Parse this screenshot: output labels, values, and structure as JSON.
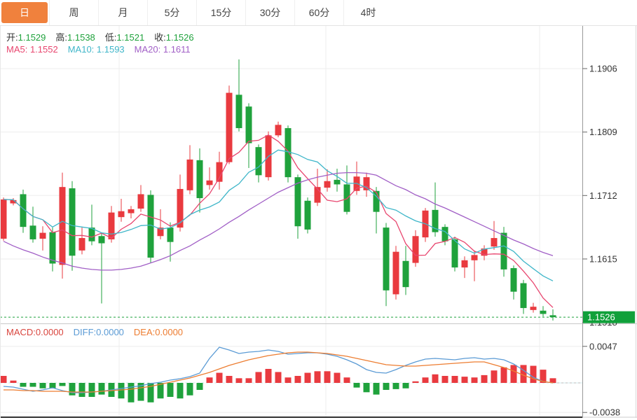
{
  "tabs": [
    {
      "label": "日",
      "active": true
    },
    {
      "label": "周",
      "active": false
    },
    {
      "label": "月",
      "active": false
    },
    {
      "label": "5分",
      "active": false
    },
    {
      "label": "15分",
      "active": false
    },
    {
      "label": "30分",
      "active": false
    },
    {
      "label": "60分",
      "active": false
    },
    {
      "label": "4时",
      "active": false
    }
  ],
  "legend": {
    "open_label": "开:",
    "open_value": "1.1529",
    "high_label": "高:",
    "high_value": "1.1538",
    "low_label": "低:",
    "low_value": "1.1521",
    "close_label": "收:",
    "close_value": "1.1526",
    "ma5_text": "MA5: 1.1552",
    "ma10_text": "MA10: 1.1593",
    "ma20_text": "MA20: 1.1611",
    "macd_text": "MACD:0.0000",
    "diff_text": "DIFF:0.0000",
    "dea_text": "DEA:0.0000"
  },
  "colors": {
    "up": "#e93a3f",
    "down": "#1fa23c",
    "tab_active": "#f0813d",
    "ma5": "#e8466f",
    "ma10": "#3fb6c9",
    "ma20": "#a15fc6",
    "diff": "#5b9bd5",
    "dea": "#ed7d31",
    "badge_bg": "#10a03a",
    "price_line": "#1fa23c",
    "ohlc_value": "#1fa23c",
    "macd_label": "#d9453e",
    "grid": "#ededed",
    "axis_text": "#333333"
  },
  "chart_data": {
    "type": "candlestick",
    "title": "",
    "price_axis_labels": [
      "1.1906",
      "1.1809",
      "1.1712",
      "1.1615",
      "1.1518"
    ],
    "macd_axis_labels": [
      "0.0047",
      "-0.0038"
    ],
    "current_price": "1.1526",
    "candles_ohlc": [
      [
        1.1646,
        1.1709,
        1.1643,
        1.1706
      ],
      [
        1.17,
        1.1708,
        1.1697,
        1.1705
      ],
      [
        1.1714,
        1.1721,
        1.1655,
        1.1664
      ],
      [
        1.1666,
        1.1695,
        1.164,
        1.1645
      ],
      [
        1.1646,
        1.1665,
        1.1628,
        1.1655
      ],
      [
        1.1656,
        1.1663,
        1.1596,
        1.1608
      ],
      [
        1.1606,
        1.1747,
        1.1585,
        1.1725
      ],
      [
        1.1723,
        1.1734,
        1.1597,
        1.162
      ],
      [
        1.1628,
        1.1663,
        1.1622,
        1.1647
      ],
      [
        1.1663,
        1.1698,
        1.1636,
        1.1642
      ],
      [
        1.165,
        1.1654,
        1.1547,
        1.1639
      ],
      [
        1.1645,
        1.1696,
        1.164,
        1.1686
      ],
      [
        1.1679,
        1.1707,
        1.1672,
        1.1688
      ],
      [
        1.1685,
        1.1696,
        1.1677,
        1.1691
      ],
      [
        1.1692,
        1.1728,
        1.1687,
        1.1714
      ],
      [
        1.1713,
        1.172,
        1.1609,
        1.1617
      ],
      [
        1.165,
        1.1691,
        1.1645,
        1.1663
      ],
      [
        1.1663,
        1.1671,
        1.1611,
        1.1641
      ],
      [
        1.1663,
        1.1744,
        1.1657,
        1.1722
      ],
      [
        1.172,
        1.1789,
        1.1714,
        1.1767
      ],
      [
        1.1766,
        1.1784,
        1.1686,
        1.1708
      ],
      [
        1.1728,
        1.1755,
        1.1721,
        1.1735
      ],
      [
        1.1733,
        1.1779,
        1.1721,
        1.1763
      ],
      [
        1.1763,
        1.188,
        1.176,
        1.1869
      ],
      [
        1.1866,
        1.192,
        1.181,
        1.1815
      ],
      [
        1.1848,
        1.1853,
        1.1754,
        1.1792
      ],
      [
        1.1786,
        1.179,
        1.1732,
        1.1743
      ],
      [
        1.174,
        1.181,
        1.1735,
        1.1804
      ],
      [
        1.1804,
        1.1825,
        1.1801,
        1.182
      ],
      [
        1.1815,
        1.1819,
        1.1732,
        1.174
      ],
      [
        1.174,
        1.1744,
        1.1646,
        1.1665
      ],
      [
        1.1704,
        1.1709,
        1.1654,
        1.166
      ],
      [
        1.1701,
        1.1753,
        1.1696,
        1.1725
      ],
      [
        1.1724,
        1.1752,
        1.1718,
        1.1734
      ],
      [
        1.1736,
        1.1753,
        1.1718,
        1.1729
      ],
      [
        1.1729,
        1.1758,
        1.1683,
        1.1687
      ],
      [
        1.1719,
        1.1764,
        1.1713,
        1.1741
      ],
      [
        1.172,
        1.1747,
        1.171,
        1.174
      ],
      [
        1.1719,
        1.1725,
        1.1654,
        1.1687
      ],
      [
        1.1663,
        1.167,
        1.1543,
        1.1567
      ],
      [
        1.1561,
        1.1635,
        1.1553,
        1.1626
      ],
      [
        1.1612,
        1.1635,
        1.156,
        1.1572
      ],
      [
        1.1609,
        1.1659,
        1.1603,
        1.165
      ],
      [
        1.1648,
        1.1693,
        1.1641,
        1.1689
      ],
      [
        1.169,
        1.1732,
        1.1649,
        1.1656
      ],
      [
        1.1664,
        1.1668,
        1.1636,
        1.1642
      ],
      [
        1.1645,
        1.1649,
        1.1596,
        1.1602
      ],
      [
        1.1602,
        1.1619,
        1.1586,
        1.1613
      ],
      [
        1.1613,
        1.1628,
        1.1581,
        1.1621
      ],
      [
        1.162,
        1.1636,
        1.1613,
        1.1631
      ],
      [
        1.1634,
        1.1673,
        1.1629,
        1.1647
      ],
      [
        1.1655,
        1.1664,
        1.1588,
        1.1599
      ],
      [
        1.1601,
        1.1605,
        1.1553,
        1.1565
      ],
      [
        1.1578,
        1.1583,
        1.1531,
        1.154
      ],
      [
        1.1537,
        1.1548,
        1.1533,
        1.1542
      ],
      [
        1.1536,
        1.1543,
        1.1527,
        1.1531
      ],
      [
        1.1529,
        1.1538,
        1.1521,
        1.1526
      ]
    ],
    "ma20_values": [
      1.1642,
      1.1635,
      1.1629,
      1.1624,
      1.1618,
      1.1613,
      1.1609,
      1.1604,
      1.1601,
      1.1599,
      1.1598,
      1.1598,
      1.1599,
      1.1601,
      1.1604,
      1.1609,
      1.1614,
      1.162,
      1.1628,
      1.1635,
      1.1644,
      1.1652,
      1.1661,
      1.1671,
      1.168,
      1.169,
      1.1699,
      1.1708,
      1.1717,
      1.1724,
      1.1731,
      1.1736,
      1.174,
      1.1743,
      1.1746,
      1.1747,
      1.1747,
      1.1746,
      1.1743,
      1.1735,
      1.1727,
      1.1721,
      1.1713,
      1.1707,
      1.1699,
      1.1693,
      1.1686,
      1.1679,
      1.1672,
      1.1665,
      1.1658,
      1.1651,
      1.1644,
      1.1638,
      1.1631,
      1.1625,
      1.162
    ],
    "macd": {
      "unit": 0.0001,
      "hist": [
        9,
        3,
        -5,
        -5,
        -7,
        -7,
        -4,
        -16,
        -18,
        -18,
        -15,
        -18,
        -20,
        -25,
        -23,
        -25,
        -20,
        -18,
        -20,
        -16,
        -9,
        7,
        13,
        9,
        6,
        6,
        14,
        18,
        14,
        7,
        9,
        13,
        15,
        15,
        13,
        7,
        -6,
        -12,
        -15,
        -9,
        -8,
        -7,
        2,
        7,
        11,
        9,
        9,
        8,
        7,
        10,
        16,
        20,
        23,
        23,
        22,
        17,
        6
      ],
      "diff": [
        -4.5,
        -5.4,
        -8.1,
        -10.8,
        -9,
        -6.3,
        -9.9,
        -12.6,
        -12.6,
        -11.7,
        -10.8,
        -9,
        -7.2,
        -5.4,
        -3.6,
        -0.9,
        0.9,
        3.6,
        5.4,
        8.1,
        12.6,
        31.5,
        45.9,
        42.3,
        37.8,
        39.6,
        40.5,
        42.3,
        40.5,
        36.9,
        37.8,
        38.7,
        38.7,
        36.9,
        34.2,
        29.7,
        24.3,
        17.1,
        13.5,
        12.6,
        17.1,
        22.5,
        27,
        30.6,
        31.5,
        30.6,
        29.7,
        31.5,
        32.4,
        30.6,
        31.5,
        29.7,
        24.3,
        16.2,
        7.2,
        1.8,
        0
      ],
      "dea": [
        -9,
        -9,
        -9.9,
        -9.9,
        -10.8,
        -10.8,
        -10.8,
        -11.7,
        -11.7,
        -11.7,
        -10.8,
        -9.9,
        -9,
        -8.1,
        -6.3,
        -4.5,
        -1.8,
        0.9,
        3.6,
        6.3,
        9.9,
        13.5,
        18,
        22.5,
        26.1,
        29.7,
        32.4,
        35.1,
        36.9,
        38.7,
        39.6,
        39.6,
        38.7,
        37.8,
        36,
        34.2,
        31.5,
        28.8,
        26.1,
        23.4,
        22.5,
        21.6,
        21.6,
        22.5,
        23.4,
        24.3,
        25.2,
        26.1,
        27,
        27,
        23.4,
        19.8,
        15.3,
        9.9,
        5.4,
        1.8,
        0
      ]
    }
  }
}
